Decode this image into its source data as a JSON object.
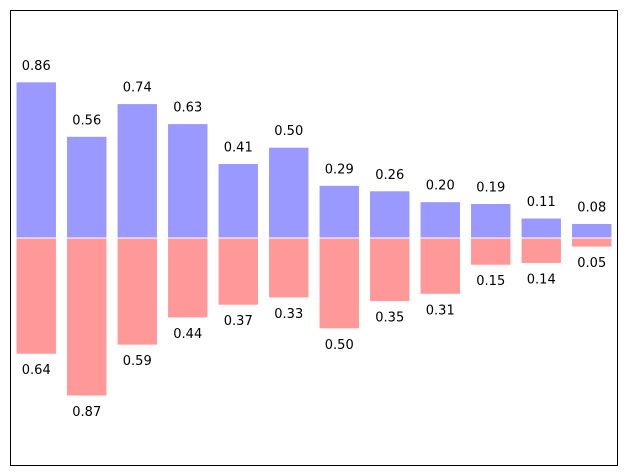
{
  "chart_data": {
    "type": "bar",
    "title": "",
    "xlabel": "",
    "ylabel": "",
    "x": [
      0,
      1,
      2,
      3,
      4,
      5,
      6,
      7,
      8,
      9,
      10,
      11
    ],
    "series": [
      {
        "name": "upper",
        "direction": "up",
        "values": [
          0.86,
          0.56,
          0.74,
          0.63,
          0.41,
          0.5,
          0.29,
          0.26,
          0.2,
          0.19,
          0.11,
          0.08
        ],
        "labels": [
          "0.86",
          "0.56",
          "0.74",
          "0.63",
          "0.41",
          "0.50",
          "0.29",
          "0.26",
          "0.20",
          "0.19",
          "0.11",
          "0.08"
        ],
        "color": "#9999ff"
      },
      {
        "name": "lower",
        "direction": "down",
        "values": [
          0.64,
          0.87,
          0.59,
          0.44,
          0.37,
          0.33,
          0.5,
          0.35,
          0.31,
          0.15,
          0.14,
          0.05
        ],
        "labels": [
          "0.64",
          "0.87",
          "0.59",
          "0.44",
          "0.37",
          "0.33",
          "0.50",
          "0.35",
          "0.31",
          "0.15",
          "0.14",
          "0.05"
        ],
        "color": "#ff9999"
      }
    ],
    "xlim": [
      -0.5,
      11.5
    ],
    "ylim": [
      -1.25,
      1.25
    ],
    "grid": false,
    "axes_ticks": false
  }
}
